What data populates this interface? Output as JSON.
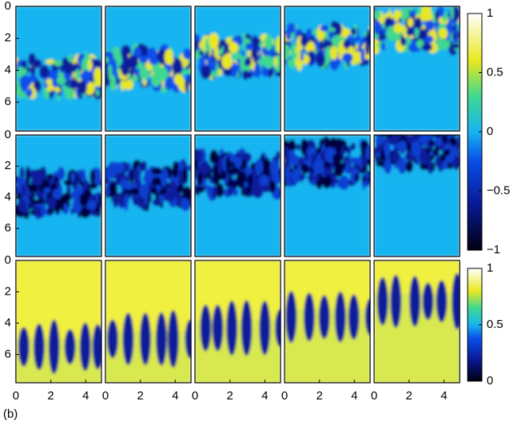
{
  "panel_label": "(b)",
  "chart_data": {
    "type": "image-grid",
    "xlim": [
      0,
      4.9
    ],
    "ylim": [
      0,
      7.8
    ],
    "y_inverted": true,
    "xticks": [
      0,
      2,
      4
    ],
    "yticks": [
      0,
      2,
      4,
      6
    ],
    "colorbars": [
      {
        "lim": [
          -1,
          1
        ],
        "ticks": [
          {
            "value": -1,
            "label": "−1"
          },
          {
            "value": -0.5,
            "label": "−0.5"
          },
          0,
          0.5,
          1
        ]
      },
      {
        "lim": [
          0,
          1
        ],
        "ticks": [
          0,
          0.5,
          1
        ]
      }
    ]
  }
}
